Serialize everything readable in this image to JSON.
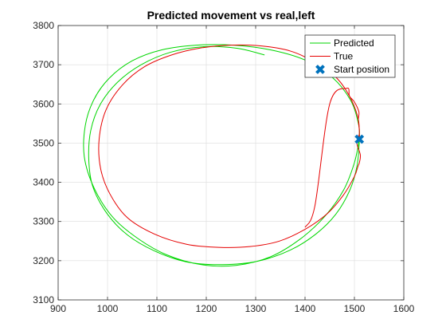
{
  "chart_data": {
    "type": "line",
    "title": "Predicted movement vs real,left",
    "xlabel": "",
    "ylabel": "",
    "xlim": [
      900,
      1600
    ],
    "ylim": [
      3100,
      3800
    ],
    "xticks": [
      900,
      1000,
      1100,
      1200,
      1300,
      1400,
      1500,
      1600
    ],
    "yticks": [
      3100,
      3200,
      3300,
      3400,
      3500,
      3600,
      3700,
      3800
    ],
    "grid": true,
    "legend": {
      "placement": "top-right",
      "entries": [
        "Predicted",
        "True",
        "Start position"
      ]
    },
    "series": [
      {
        "name": "Predicted",
        "color": "#00d600",
        "kind": "line",
        "x": [
          1510,
          1500,
          1478,
          1440,
          1390,
          1330,
          1260,
          1190,
          1120,
          1060,
          1010,
          973,
          953,
          955,
          972,
          1003,
          1050,
          1110,
          1180,
          1255,
          1330,
          1400,
          1455,
          1492,
          1508,
          1510,
          1505,
          1490,
          1462,
          1422,
          1370,
          1305,
          1232,
          1160,
          1095,
          1040,
          998,
          970,
          962,
          966,
          985,
          1020,
          1068,
          1128,
          1195,
          1262,
          1318
        ],
        "y": [
          3510,
          3450,
          3380,
          3313,
          3255,
          3210,
          3188,
          3190,
          3215,
          3258,
          3312,
          3385,
          3465,
          3545,
          3610,
          3665,
          3710,
          3738,
          3750,
          3750,
          3738,
          3712,
          3668,
          3610,
          3550,
          3510,
          3440,
          3378,
          3318,
          3268,
          3227,
          3199,
          3190,
          3197,
          3225,
          3266,
          3322,
          3390,
          3460,
          3532,
          3598,
          3655,
          3700,
          3732,
          3746,
          3742,
          3725
        ]
      },
      {
        "name": "True",
        "color": "#e60000",
        "kind": "line",
        "x": [
          1510,
          1508,
          1492,
          1465,
          1422,
          1370,
          1310,
          1250,
          1190,
          1130,
          1075,
          1030,
          997,
          983,
          986,
          1005,
          1040,
          1095,
          1160,
          1225,
          1288,
          1348,
          1400,
          1445,
          1478,
          1500,
          1507,
          1510,
          1512,
          1505,
          1510,
          1508,
          1509,
          1500,
          1490,
          1485,
          1450,
          1420,
          1400
        ],
        "y": [
          3510,
          3560,
          3615,
          3665,
          3705,
          3735,
          3748,
          3750,
          3743,
          3725,
          3695,
          3648,
          3585,
          3510,
          3435,
          3370,
          3310,
          3268,
          3242,
          3234,
          3236,
          3250,
          3280,
          3320,
          3368,
          3415,
          3440,
          3450,
          3470,
          3500,
          3525,
          3560,
          3580,
          3605,
          3620,
          3640,
          3600,
          3340,
          3285
        ]
      },
      {
        "name": "Start position",
        "color": "#0072bd",
        "kind": "marker",
        "x": [
          1510
        ],
        "y": [
          3510
        ]
      }
    ]
  }
}
